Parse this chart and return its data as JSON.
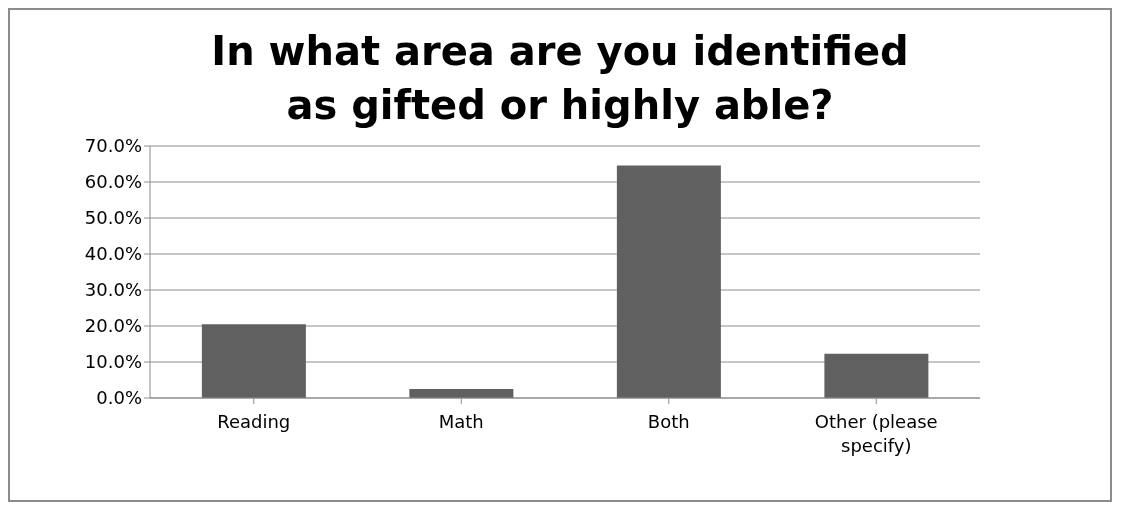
{
  "chart_data": {
    "type": "bar",
    "title": "In what area are you identified as gifted or highly able?",
    "categories": [
      "Reading",
      "Math",
      "Both",
      "Other (please specify)"
    ],
    "values": [
      20.5,
      2.5,
      64.6,
      12.3
    ],
    "color": "#606060",
    "ylim": [
      0,
      70
    ],
    "yticks": [
      {
        "value": 0,
        "label": "0.0%"
      },
      {
        "value": 10,
        "label": "10.0%"
      },
      {
        "value": 20,
        "label": "20.0%"
      },
      {
        "value": 30,
        "label": "30.0%"
      },
      {
        "value": 40,
        "label": "40.0%"
      },
      {
        "value": 50,
        "label": "50.0%"
      },
      {
        "value": 60,
        "label": "60.0%"
      },
      {
        "value": 70,
        "label": "70.0%"
      }
    ],
    "grid": "y"
  }
}
